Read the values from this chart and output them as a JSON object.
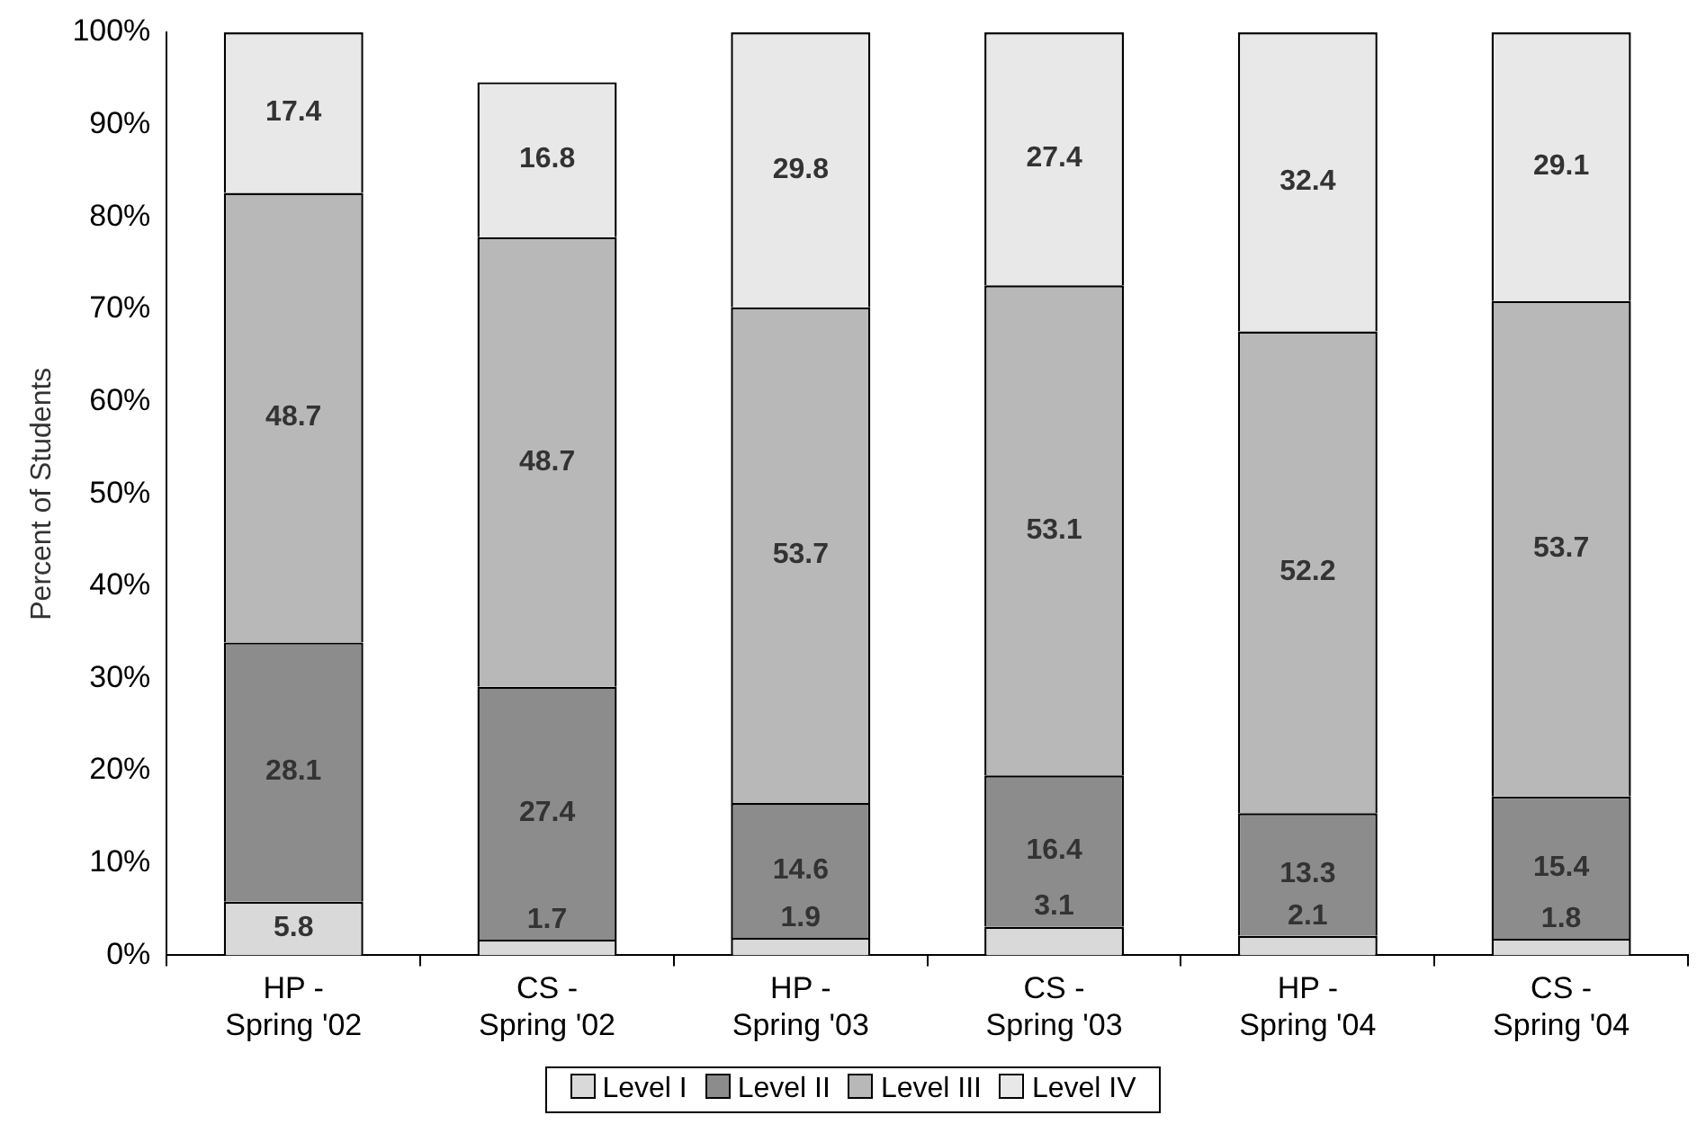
{
  "chart_data": {
    "type": "bar",
    "stacked": true,
    "ylabel": "Percent of Students",
    "categories": [
      "HP -\nSpring '02",
      "CS -\nSpring '02",
      "HP -\nSpring '03",
      "CS -\nSpring '03",
      "HP -\nSpring '04",
      "CS -\nSpring '04"
    ],
    "series": [
      {
        "name": "Level I",
        "color": "#d9d9d9",
        "values": [
          5.8,
          1.7,
          1.9,
          3.1,
          2.1,
          1.8
        ]
      },
      {
        "name": "Level II",
        "color": "#8c8c8c",
        "values": [
          28.1,
          27.4,
          14.6,
          16.4,
          13.3,
          15.4
        ]
      },
      {
        "name": "Level III",
        "color": "#b8b8b8",
        "values": [
          48.7,
          48.7,
          53.7,
          53.1,
          52.2,
          53.7
        ]
      },
      {
        "name": "Level IV",
        "color": "#e8e8e8",
        "values": [
          17.4,
          16.8,
          29.8,
          27.4,
          32.4,
          29.1
        ]
      }
    ],
    "ylim": [
      0,
      100
    ],
    "yticks": [
      {
        "value": 0,
        "label": "0%"
      },
      {
        "value": 10,
        "label": "10%"
      },
      {
        "value": 20,
        "label": "20%"
      },
      {
        "value": 30,
        "label": "30%"
      },
      {
        "value": 40,
        "label": "40%"
      },
      {
        "value": 50,
        "label": "50%"
      },
      {
        "value": 60,
        "label": "60%"
      },
      {
        "value": 70,
        "label": "70%"
      },
      {
        "value": 80,
        "label": "80%"
      },
      {
        "value": 90,
        "label": "90%"
      },
      {
        "value": 100,
        "label": "100%"
      }
    ],
    "grid": false,
    "legend": "bottom",
    "data_labels": true
  }
}
